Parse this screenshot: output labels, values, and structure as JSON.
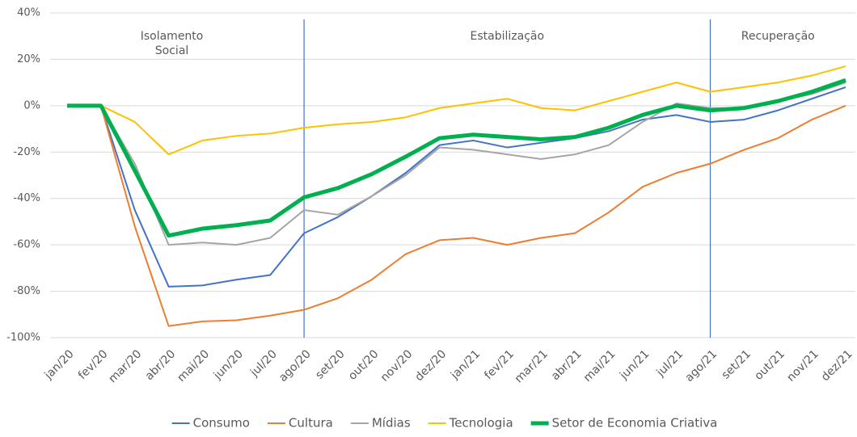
{
  "chart_data": {
    "type": "line",
    "categories": [
      "jan/20",
      "fev/20",
      "mar/20",
      "abr/20",
      "mai/20",
      "jun/20",
      "jul/20",
      "ago/20",
      "set/20",
      "out/20",
      "nov/20",
      "dez/20",
      "jan/21",
      "fev/21",
      "mar/21",
      "abr/21",
      "mai/21",
      "jun/21",
      "jul/21",
      "ago/21",
      "set/21",
      "out/21",
      "nov/21",
      "dez/21"
    ],
    "series": [
      {
        "name": "Consumo",
        "color": "#4472c4",
        "values": [
          0,
          0,
          -45,
          -78,
          -77.5,
          -75,
          -73,
          -55,
          -48,
          -39,
          -29,
          -17,
          -15,
          -18,
          -16,
          -14,
          -11,
          -6,
          -4,
          -7,
          -6,
          -2,
          3,
          8
        ]
      },
      {
        "name": "Cultura",
        "color": "#ed7d31",
        "values": [
          0,
          0,
          -52,
          -95,
          -93,
          -92.5,
          -90.5,
          -88,
          -83,
          -75,
          -64,
          -58,
          -57,
          -60,
          -57,
          -55,
          -46,
          -35,
          -29,
          -25,
          -19,
          -14,
          -6,
          0
        ]
      },
      {
        "name": "Mídias",
        "color": "#a5a5a5",
        "values": [
          0,
          0,
          -25,
          -60,
          -59,
          -60,
          -57,
          -45,
          -47,
          -39,
          -30,
          -18,
          -19,
          -21,
          -23,
          -21,
          -17,
          -7,
          1,
          -1,
          -1,
          2,
          5,
          10
        ]
      },
      {
        "name": "Tecnologia",
        "color": "#ffc000",
        "values": [
          0,
          0,
          -7,
          -21,
          -15,
          -13,
          -12,
          -9.5,
          -8,
          -7,
          -5,
          -1,
          1,
          3,
          -1,
          -2,
          2,
          6,
          10,
          6,
          8,
          10,
          13,
          17
        ]
      },
      {
        "name": "Setor de Economia Criativa",
        "color": "#00b050",
        "width": 5,
        "values": [
          0,
          0,
          -28,
          -56,
          -53,
          -51.5,
          -49.5,
          -39.5,
          -35.5,
          -29.5,
          -22,
          -14,
          -12.5,
          -13.5,
          -14.5,
          -13.5,
          -9.5,
          -4,
          0,
          -2,
          -1,
          2,
          6,
          11
        ]
      }
    ],
    "ylim": [
      -100,
      40
    ],
    "yticks": [
      {
        "value": -100,
        "label": "-100%"
      },
      {
        "value": -80,
        "label": "-80%"
      },
      {
        "value": -60,
        "label": "-60%"
      },
      {
        "value": -40,
        "label": "-40%"
      },
      {
        "value": -20,
        "label": "-20%"
      },
      {
        "value": 0,
        "label": "0%"
      },
      {
        "value": 20,
        "label": "20%"
      },
      {
        "value": 40,
        "label": "40%"
      }
    ],
    "grid": true,
    "legend": "bottom",
    "periods": [
      [
        "Isolamento",
        "Social"
      ],
      [
        "Estabilização"
      ],
      [
        "Recuperação"
      ]
    ],
    "period_starts": [
      7,
      19
    ],
    "divider_color": "#4472c4"
  }
}
